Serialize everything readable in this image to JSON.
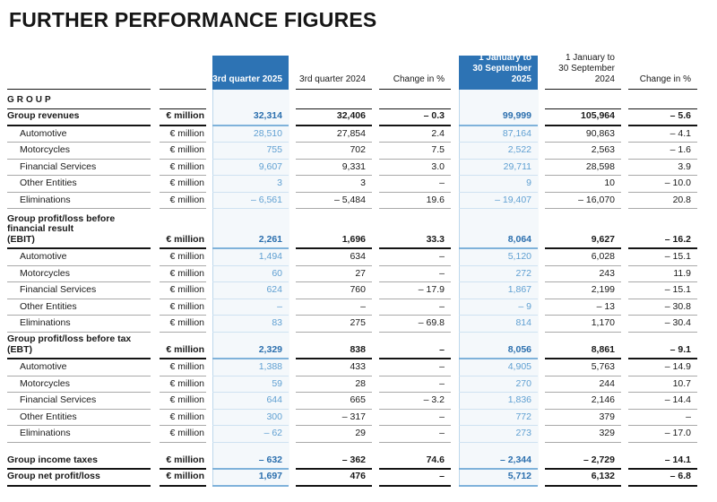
{
  "title": "FURTHER PERFORMANCE FIGURES",
  "group_label": "GROUP",
  "unit": "€ million",
  "header": {
    "q3_2025": "3rd quarter 2025",
    "q3_2024": "3rd quarter 2024",
    "change": "Change in %",
    "ytd_2025_line1": "1 January to",
    "ytd_2025_line2": "30 September 2025",
    "ytd_2024_line1": "1 January to",
    "ytd_2024_line2": "30 September 2024",
    "change2": "Change in %"
  },
  "colors": {
    "header_blue": "#2d73b4",
    "value_blue": "#60a0d2",
    "value_blue_bold": "#2b6fae",
    "column_tint": "#f4f8fb",
    "column_edge_line": "#bed8ec"
  },
  "sections": [
    {
      "rows": [
        {
          "bold": true,
          "indent": false,
          "label": "Group revenues",
          "cells": [
            "32,314",
            "32,406",
            "– 0.3",
            "99,999",
            "105,964",
            "– 5.6"
          ]
        },
        {
          "bold": false,
          "indent": true,
          "label": "Automotive",
          "cells": [
            "28,510",
            "27,854",
            "2.4",
            "87,164",
            "90,863",
            "– 4.1"
          ]
        },
        {
          "bold": false,
          "indent": true,
          "label": "Motorcycles",
          "cells": [
            "755",
            "702",
            "7.5",
            "2,522",
            "2,563",
            "– 1.6"
          ]
        },
        {
          "bold": false,
          "indent": true,
          "label": "Financial Services",
          "cells": [
            "9,607",
            "9,331",
            "3.0",
            "29,711",
            "28,598",
            "3.9"
          ]
        },
        {
          "bold": false,
          "indent": true,
          "label": "Other Entities",
          "cells": [
            "3",
            "3",
            "–",
            "9",
            "10",
            "– 10.0"
          ]
        },
        {
          "bold": false,
          "indent": true,
          "label": "Eliminations",
          "cells": [
            "– 6,561",
            "– 5,484",
            "19.6",
            "– 19,407",
            "– 16,070",
            "20.8"
          ]
        }
      ]
    },
    {
      "rows": [
        {
          "bold": true,
          "indent": false,
          "label": "Group profit/loss before financial result",
          "label2": "(EBIT)",
          "cells": [
            "2,261",
            "1,696",
            "33.3",
            "8,064",
            "9,627",
            "– 16.2"
          ]
        },
        {
          "bold": false,
          "indent": true,
          "label": "Automotive",
          "cells": [
            "1,494",
            "634",
            "–",
            "5,120",
            "6,028",
            "– 15.1"
          ]
        },
        {
          "bold": false,
          "indent": true,
          "label": "Motorcycles",
          "cells": [
            "60",
            "27",
            "–",
            "272",
            "243",
            "11.9"
          ]
        },
        {
          "bold": false,
          "indent": true,
          "label": "Financial Services",
          "cells": [
            "624",
            "760",
            "– 17.9",
            "1,867",
            "2,199",
            "– 15.1"
          ]
        },
        {
          "bold": false,
          "indent": true,
          "label": "Other Entities",
          "cells": [
            "–",
            "–",
            "–",
            "– 9",
            "– 13",
            "– 30.8"
          ]
        },
        {
          "bold": false,
          "indent": true,
          "label": "Eliminations",
          "cells": [
            "83",
            "275",
            "– 69.8",
            "814",
            "1,170",
            "– 30.4"
          ]
        }
      ]
    },
    {
      "rows": [
        {
          "bold": true,
          "indent": false,
          "label": "Group profit/loss before tax (EBT)",
          "cells": [
            "2,329",
            "838",
            "–",
            "8,056",
            "8,861",
            "– 9.1"
          ]
        },
        {
          "bold": false,
          "indent": true,
          "label": "Automotive",
          "cells": [
            "1,388",
            "433",
            "–",
            "4,905",
            "5,763",
            "– 14.9"
          ]
        },
        {
          "bold": false,
          "indent": true,
          "label": "Motorcycles",
          "cells": [
            "59",
            "28",
            "–",
            "270",
            "244",
            "10.7"
          ]
        },
        {
          "bold": false,
          "indent": true,
          "label": "Financial Services",
          "cells": [
            "644",
            "665",
            "– 3.2",
            "1,836",
            "2,146",
            "– 14.4"
          ]
        },
        {
          "bold": false,
          "indent": true,
          "label": "Other Entities",
          "cells": [
            "300",
            "– 317",
            "–",
            "772",
            "379",
            "–"
          ]
        },
        {
          "bold": false,
          "indent": true,
          "label": "Eliminations",
          "cells": [
            "– 62",
            "29",
            "–",
            "273",
            "329",
            "– 17.0"
          ]
        }
      ]
    },
    {
      "rows": [
        {
          "bold": true,
          "indent": false,
          "label": "Group income taxes",
          "cells": [
            "– 632",
            "– 362",
            "74.6",
            "– 2,344",
            "– 2,729",
            "– 14.1"
          ]
        },
        {
          "bold": true,
          "indent": false,
          "label": "Group net profit/loss",
          "cells": [
            "1,697",
            "476",
            "–",
            "5,712",
            "6,132",
            "– 6.8"
          ]
        }
      ]
    }
  ]
}
